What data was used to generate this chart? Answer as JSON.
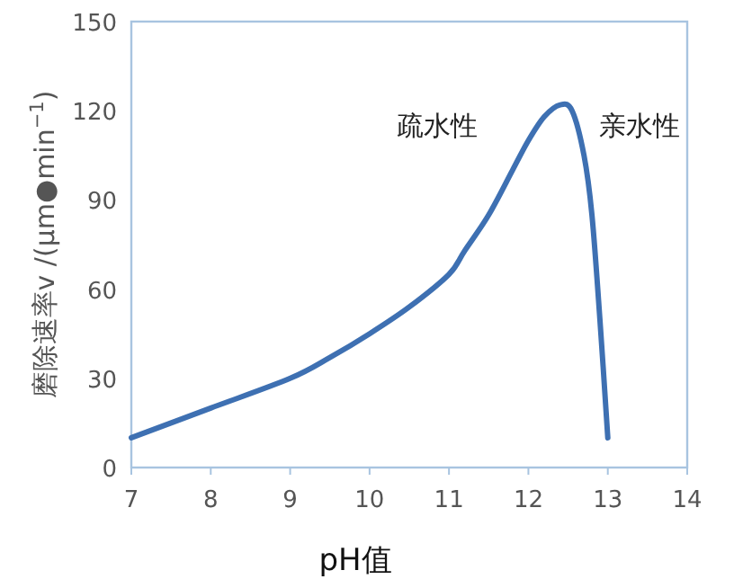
{
  "chart_data": {
    "type": "line",
    "xlabel": "pH值",
    "ylabel": "磨除速率v /(μm●min$^{−1}$)",
    "xlim": [
      7,
      14
    ],
    "xticks": [
      7,
      8,
      9,
      10,
      11,
      12,
      13,
      14
    ],
    "ylim": [
      0,
      150
    ],
    "yticks": [
      0,
      30,
      60,
      90,
      120,
      150
    ],
    "annotations": [
      "疏水性",
      "亲水性"
    ],
    "grid": false,
    "marker": "none",
    "line_style": "solid",
    "series": [
      {
        "color": "#3e70b2",
        "x": [
          7,
          8,
          9,
          9.5,
          10,
          10.5,
          11,
          11.2,
          11.5,
          11.8,
          12,
          12.2,
          12.4,
          12.55,
          12.7,
          12.8,
          12.9,
          13
        ],
        "values": [
          10,
          20,
          30,
          37,
          45,
          54,
          65,
          73,
          85,
          100,
          110,
          118,
          122,
          120,
          105,
          85,
          50,
          10
        ]
      }
    ]
  }
}
